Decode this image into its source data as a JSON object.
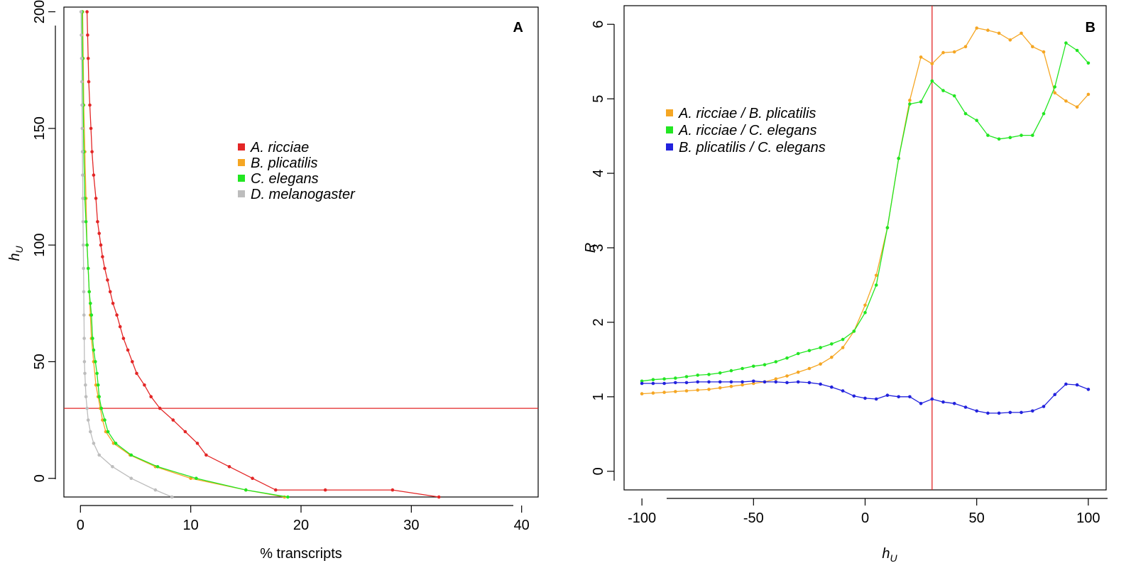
{
  "chart_data": [
    {
      "type": "line",
      "panel": "A",
      "xlabel": "% transcripts",
      "ylabel": "h",
      "ylabel_sub": "U",
      "xlim": [
        -1.5,
        41.5
      ],
      "ylim": [
        -8,
        202
      ],
      "xticks": [
        0,
        10,
        20,
        30,
        40
      ],
      "yticks": [
        0,
        50,
        100,
        150,
        200
      ],
      "grid": false,
      "legend_position": "center",
      "hline": {
        "y": 30,
        "color": "#e32626"
      },
      "series": [
        {
          "name": "A. ricciae",
          "color": "#e32626",
          "points": [
            [
              0.6,
              200
            ],
            [
              0.65,
              190
            ],
            [
              0.7,
              180
            ],
            [
              0.75,
              170
            ],
            [
              0.85,
              160
            ],
            [
              0.95,
              150
            ],
            [
              1.05,
              140
            ],
            [
              1.2,
              130
            ],
            [
              1.4,
              120
            ],
            [
              1.55,
              110
            ],
            [
              1.7,
              105
            ],
            [
              1.85,
              100
            ],
            [
              2.0,
              95
            ],
            [
              2.2,
              90
            ],
            [
              2.45,
              85
            ],
            [
              2.7,
              80
            ],
            [
              2.95,
              75
            ],
            [
              3.3,
              70
            ],
            [
              3.6,
              65
            ],
            [
              3.9,
              60
            ],
            [
              4.3,
              55
            ],
            [
              4.7,
              50
            ],
            [
              5.1,
              45
            ],
            [
              5.8,
              40
            ],
            [
              6.4,
              35
            ],
            [
              7.2,
              30
            ],
            [
              8.4,
              25
            ],
            [
              9.5,
              20
            ],
            [
              10.6,
              15
            ],
            [
              11.4,
              10
            ],
            [
              13.5,
              5
            ],
            [
              15.6,
              0
            ],
            [
              17.7,
              -5
            ],
            [
              22.2,
              -5
            ],
            [
              28.3,
              -5
            ],
            [
              32.5,
              -8
            ]
          ]
        },
        {
          "name": "B. plicatilis",
          "color": "#f5a623",
          "points": [
            [
              0.2,
              200
            ],
            [
              0.25,
              180
            ],
            [
              0.3,
              160
            ],
            [
              0.4,
              140
            ],
            [
              0.5,
              120
            ],
            [
              0.6,
              100
            ],
            [
              0.7,
              90
            ],
            [
              0.8,
              80
            ],
            [
              0.9,
              70
            ],
            [
              1.0,
              60
            ],
            [
              1.2,
              50
            ],
            [
              1.4,
              40
            ],
            [
              1.6,
              35
            ],
            [
              1.8,
              30
            ],
            [
              2.0,
              25
            ],
            [
              2.3,
              20
            ],
            [
              3.0,
              15
            ],
            [
              4.5,
              10
            ],
            [
              6.8,
              5
            ],
            [
              10.0,
              0
            ],
            [
              15.0,
              -5
            ],
            [
              18.5,
              -8
            ]
          ]
        },
        {
          "name": "C. elegans",
          "color": "#22e622",
          "points": [
            [
              0.15,
              200
            ],
            [
              0.2,
              180
            ],
            [
              0.25,
              160
            ],
            [
              0.3,
              140
            ],
            [
              0.4,
              120
            ],
            [
              0.5,
              110
            ],
            [
              0.6,
              100
            ],
            [
              0.7,
              90
            ],
            [
              0.8,
              80
            ],
            [
              0.9,
              75
            ],
            [
              1.0,
              70
            ],
            [
              1.1,
              60
            ],
            [
              1.2,
              55
            ],
            [
              1.35,
              50
            ],
            [
              1.5,
              45
            ],
            [
              1.6,
              40
            ],
            [
              1.7,
              35
            ],
            [
              1.9,
              30
            ],
            [
              2.2,
              25
            ],
            [
              2.5,
              20
            ],
            [
              3.2,
              15
            ],
            [
              4.6,
              10
            ],
            [
              7.0,
              5
            ],
            [
              10.5,
              0
            ],
            [
              15.0,
              -5
            ],
            [
              18.8,
              -8
            ]
          ]
        },
        {
          "name": "D. melanogaster",
          "color": "#bdbdbd",
          "points": [
            [
              0.05,
              200
            ],
            [
              0.08,
              190
            ],
            [
              0.1,
              180
            ],
            [
              0.12,
              170
            ],
            [
              0.14,
              160
            ],
            [
              0.16,
              150
            ],
            [
              0.18,
              140
            ],
            [
              0.2,
              130
            ],
            [
              0.22,
              120
            ],
            [
              0.24,
              110
            ],
            [
              0.26,
              100
            ],
            [
              0.28,
              90
            ],
            [
              0.3,
              80
            ],
            [
              0.32,
              70
            ],
            [
              0.34,
              60
            ],
            [
              0.36,
              50
            ],
            [
              0.4,
              45
            ],
            [
              0.45,
              40
            ],
            [
              0.5,
              35
            ],
            [
              0.6,
              30
            ],
            [
              0.7,
              25
            ],
            [
              0.9,
              20
            ],
            [
              1.2,
              15
            ],
            [
              1.7,
              10
            ],
            [
              2.9,
              5
            ],
            [
              4.6,
              0
            ],
            [
              6.8,
              -5
            ],
            [
              8.3,
              -8
            ]
          ]
        }
      ]
    },
    {
      "type": "line",
      "panel": "B",
      "xlabel": "h",
      "xlabel_sub": "U",
      "ylabel": "R",
      "xlim": [
        -108,
        108
      ],
      "ylim": [
        -0.25,
        6.25
      ],
      "xticks": [
        -100,
        -50,
        0,
        50,
        100
      ],
      "yticks": [
        0,
        1,
        2,
        3,
        4,
        5,
        6
      ],
      "grid": false,
      "legend_position": "top-left",
      "vline": {
        "x": 30,
        "color": "#e32626"
      },
      "series": [
        {
          "name": "A. ricciae / B. plicatilis",
          "color": "#f5a623",
          "points": [
            [
              -100,
              1.04
            ],
            [
              -95,
              1.05
            ],
            [
              -90,
              1.06
            ],
            [
              -85,
              1.07
            ],
            [
              -80,
              1.08
            ],
            [
              -75,
              1.09
            ],
            [
              -70,
              1.1
            ],
            [
              -65,
              1.12
            ],
            [
              -60,
              1.14
            ],
            [
              -55,
              1.16
            ],
            [
              -50,
              1.18
            ],
            [
              -45,
              1.2
            ],
            [
              -40,
              1.24
            ],
            [
              -35,
              1.28
            ],
            [
              -30,
              1.33
            ],
            [
              -25,
              1.38
            ],
            [
              -20,
              1.44
            ],
            [
              -15,
              1.53
            ],
            [
              -10,
              1.66
            ],
            [
              -5,
              1.88
            ],
            [
              0,
              2.23
            ],
            [
              5,
              2.63
            ],
            [
              10,
              3.27
            ],
            [
              15,
              4.2
            ],
            [
              20,
              4.98
            ],
            [
              25,
              5.56
            ],
            [
              30,
              5.47
            ],
            [
              35,
              5.62
            ],
            [
              40,
              5.63
            ],
            [
              45,
              5.7
            ],
            [
              50,
              5.95
            ],
            [
              55,
              5.92
            ],
            [
              60,
              5.88
            ],
            [
              65,
              5.79
            ],
            [
              70,
              5.88
            ],
            [
              75,
              5.7
            ],
            [
              80,
              5.63
            ],
            [
              85,
              5.08
            ],
            [
              90,
              4.97
            ],
            [
              95,
              4.89
            ],
            [
              100,
              5.06
            ]
          ]
        },
        {
          "name": "A. ricciae / C. elegans",
          "color": "#22e622",
          "points": [
            [
              -100,
              1.21
            ],
            [
              -95,
              1.23
            ],
            [
              -90,
              1.24
            ],
            [
              -85,
              1.25
            ],
            [
              -80,
              1.27
            ],
            [
              -75,
              1.29
            ],
            [
              -70,
              1.3
            ],
            [
              -65,
              1.32
            ],
            [
              -60,
              1.35
            ],
            [
              -55,
              1.38
            ],
            [
              -50,
              1.41
            ],
            [
              -45,
              1.43
            ],
            [
              -40,
              1.47
            ],
            [
              -35,
              1.52
            ],
            [
              -30,
              1.58
            ],
            [
              -25,
              1.62
            ],
            [
              -20,
              1.66
            ],
            [
              -15,
              1.71
            ],
            [
              -10,
              1.77
            ],
            [
              -5,
              1.88
            ],
            [
              0,
              2.13
            ],
            [
              5,
              2.5
            ],
            [
              10,
              3.27
            ],
            [
              15,
              4.2
            ],
            [
              20,
              4.93
            ],
            [
              25,
              4.96
            ],
            [
              30,
              5.24
            ],
            [
              35,
              5.11
            ],
            [
              40,
              5.04
            ],
            [
              45,
              4.8
            ],
            [
              50,
              4.71
            ],
            [
              55,
              4.51
            ],
            [
              60,
              4.46
            ],
            [
              65,
              4.48
            ],
            [
              70,
              4.51
            ],
            [
              75,
              4.51
            ],
            [
              80,
              4.8
            ],
            [
              85,
              5.16
            ],
            [
              90,
              5.75
            ],
            [
              95,
              5.65
            ],
            [
              100,
              5.48
            ]
          ]
        },
        {
          "name": "B. plicatilis / C. elegans",
          "color": "#2222dd",
          "points": [
            [
              -100,
              1.18
            ],
            [
              -95,
              1.18
            ],
            [
              -90,
              1.18
            ],
            [
              -85,
              1.19
            ],
            [
              -80,
              1.19
            ],
            [
              -75,
              1.2
            ],
            [
              -70,
              1.2
            ],
            [
              -65,
              1.2
            ],
            [
              -60,
              1.2
            ],
            [
              -55,
              1.2
            ],
            [
              -50,
              1.21
            ],
            [
              -45,
              1.2
            ],
            [
              -40,
              1.2
            ],
            [
              -35,
              1.19
            ],
            [
              -30,
              1.2
            ],
            [
              -25,
              1.19
            ],
            [
              -20,
              1.17
            ],
            [
              -15,
              1.13
            ],
            [
              -10,
              1.08
            ],
            [
              -5,
              1.01
            ],
            [
              0,
              0.98
            ],
            [
              5,
              0.97
            ],
            [
              10,
              1.02
            ],
            [
              15,
              1.0
            ],
            [
              20,
              1.0
            ],
            [
              25,
              0.91
            ],
            [
              30,
              0.97
            ],
            [
              35,
              0.93
            ],
            [
              40,
              0.91
            ],
            [
              45,
              0.86
            ],
            [
              50,
              0.81
            ],
            [
              55,
              0.78
            ],
            [
              60,
              0.78
            ],
            [
              65,
              0.79
            ],
            [
              70,
              0.79
            ],
            [
              75,
              0.81
            ],
            [
              80,
              0.87
            ],
            [
              85,
              1.03
            ],
            [
              90,
              1.17
            ],
            [
              95,
              1.16
            ],
            [
              100,
              1.1
            ]
          ]
        }
      ]
    }
  ]
}
